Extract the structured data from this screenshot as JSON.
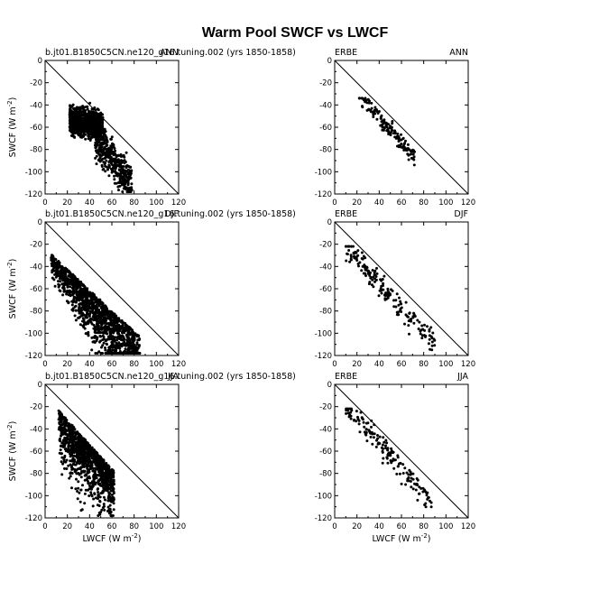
{
  "title": "Warm Pool SWCF vs LWCF",
  "colors": {
    "background": "#ffffff",
    "ink": "#000000"
  },
  "chart_data": [
    {
      "type": "scatter",
      "left_label": "b.jt01.B1850C5CN.ne120_g16.tuning.002 (yrs 1850-1858)",
      "right_label": "ANN",
      "ylabel": "SWCF (W m",
      "ylabel_sup": "-2",
      "ylabel_end": ")",
      "xlabel": "",
      "xlim": [
        0,
        120
      ],
      "ylim": [
        -120,
        0
      ],
      "xticks": [
        "0",
        "20",
        "40",
        "60",
        "80",
        "100",
        "120"
      ],
      "yticks": [
        "0",
        "-20",
        "-40",
        "-60",
        "-80",
        "-100",
        "-120"
      ],
      "reference_line": "y = -x",
      "point_cloud": {
        "x_range": [
          18,
          80
        ],
        "y_range": [
          -118,
          -34
        ],
        "count": 1200
      },
      "grid": false
    },
    {
      "type": "scatter",
      "left_label": "ERBE",
      "right_label": "ANN",
      "ylabel": "",
      "xlabel": "",
      "xlim": [
        0,
        120
      ],
      "ylim": [
        -120,
        0
      ],
      "xticks": [
        "0",
        "20",
        "40",
        "60",
        "80",
        "100",
        "120"
      ],
      "yticks": [
        "0",
        "-20",
        "-40",
        "-60",
        "-80",
        "-100",
        "-120"
      ],
      "reference_line": "y = -x",
      "point_cloud": {
        "x_range": [
          22,
          73
        ],
        "y_range": [
          -94,
          -34
        ],
        "count": 150
      },
      "grid": false
    },
    {
      "type": "scatter",
      "left_label": "b.jt01.B1850C5CN.ne120_g16.tuning.002 (yrs 1850-1858)",
      "right_label": "DJF",
      "ylabel": "SWCF (W m",
      "ylabel_sup": "-2",
      "ylabel_end": ")",
      "xlabel": "",
      "xlim": [
        0,
        120
      ],
      "ylim": [
        -120,
        0
      ],
      "xticks": [
        "0",
        "20",
        "40",
        "60",
        "80",
        "100",
        "120"
      ],
      "yticks": [
        "0",
        "-20",
        "-40",
        "-60",
        "-80",
        "-100",
        "-120"
      ],
      "reference_line": "y = -x",
      "point_cloud": {
        "x_range": [
          5,
          85
        ],
        "y_range": [
          -118,
          -25
        ],
        "count": 1500
      },
      "grid": false
    },
    {
      "type": "scatter",
      "left_label": "ERBE",
      "right_label": "DJF",
      "ylabel": "",
      "xlabel": "",
      "xlim": [
        0,
        120
      ],
      "ylim": [
        -120,
        0
      ],
      "xticks": [
        "0",
        "20",
        "40",
        "60",
        "80",
        "100",
        "120"
      ],
      "yticks": [
        "0",
        "-20",
        "-40",
        "-60",
        "-80",
        "-100",
        "-120"
      ],
      "reference_line": "y = -x",
      "point_cloud": {
        "x_range": [
          10,
          92
        ],
        "y_range": [
          -115,
          -22
        ],
        "count": 180
      },
      "grid": false
    },
    {
      "type": "scatter",
      "left_label": "b.jt01.B1850C5CN.ne120_g16.tuning.002 (yrs 1850-1858)",
      "right_label": "JJA",
      "ylabel": "SWCF (W m",
      "ylabel_sup": "-2",
      "ylabel_end": ")",
      "xlabel": "LWCF (W m",
      "xlabel_sup": "-2",
      "xlabel_end": ")",
      "xlim": [
        0,
        120
      ],
      "ylim": [
        -120,
        0
      ],
      "xticks": [
        "0",
        "20",
        "40",
        "60",
        "80",
        "100",
        "120"
      ],
      "yticks": [
        "0",
        "-20",
        "-40",
        "-60",
        "-80",
        "-100",
        "-120"
      ],
      "reference_line": "y = -x",
      "point_cloud": {
        "x_range": [
          12,
          62
        ],
        "y_range": [
          -118,
          -18
        ],
        "count": 1100
      },
      "grid": false
    },
    {
      "type": "scatter",
      "left_label": "ERBE",
      "right_label": "JJA",
      "ylabel": "",
      "xlabel": "LWCF (W m",
      "xlabel_sup": "-2",
      "xlabel_end": ")",
      "xlim": [
        0,
        120
      ],
      "ylim": [
        -120,
        0
      ],
      "xticks": [
        "0",
        "20",
        "40",
        "60",
        "80",
        "100",
        "120"
      ],
      "yticks": [
        "0",
        "-20",
        "-40",
        "-60",
        "-80",
        "-100",
        "-120"
      ],
      "reference_line": "y = -x",
      "point_cloud": {
        "x_range": [
          10,
          88
        ],
        "y_range": [
          -110,
          -22
        ],
        "count": 160
      },
      "grid": false
    }
  ]
}
